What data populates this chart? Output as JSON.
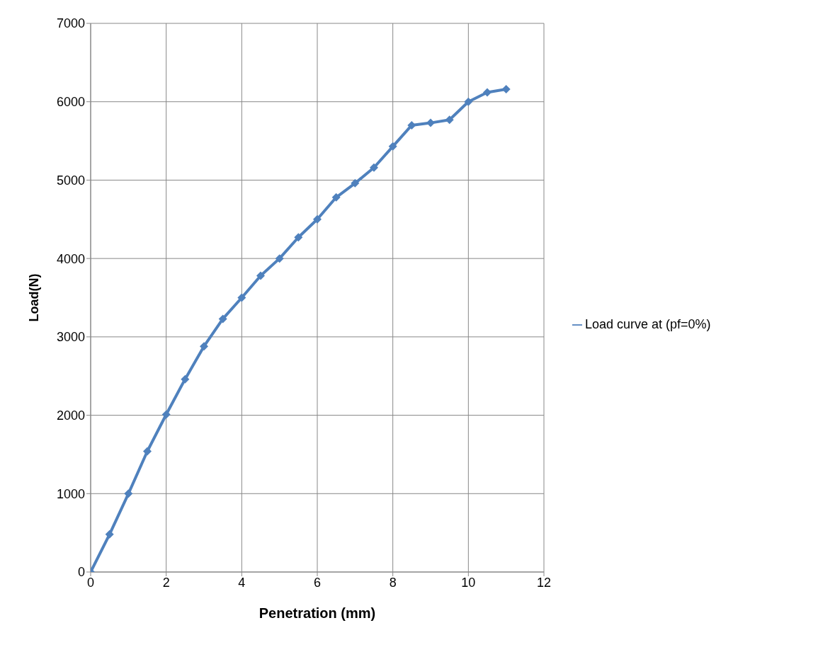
{
  "chart_data": {
    "type": "line",
    "xlabel": "Penetration (mm)",
    "ylabel": "Load(N)",
    "x": [
      0,
      0.5,
      1,
      1.5,
      2,
      2.5,
      3,
      3.5,
      4,
      4.5,
      5,
      5.5,
      6,
      6.5,
      7,
      7.5,
      8,
      8.5,
      9,
      9.5,
      10,
      10.5,
      11
    ],
    "series": [
      {
        "name": "Load curve at (pf=0%)",
        "color": "#4f81bd",
        "values": [
          0,
          480,
          1000,
          1540,
          2010,
          2460,
          2880,
          3230,
          3500,
          3780,
          4000,
          4270,
          4500,
          4780,
          4960,
          5160,
          5430,
          5700,
          5730,
          5770,
          6000,
          6120,
          6160
        ]
      }
    ],
    "xlim": [
      0,
      12
    ],
    "xticks": [
      0,
      2,
      4,
      6,
      8,
      10,
      12
    ],
    "ylim": [
      0,
      7000
    ],
    "yticks": [
      0,
      1000,
      2000,
      3000,
      4000,
      5000,
      6000,
      7000
    ],
    "grid": true,
    "legend": "right",
    "marker": "diamond",
    "line_style": "solid"
  }
}
